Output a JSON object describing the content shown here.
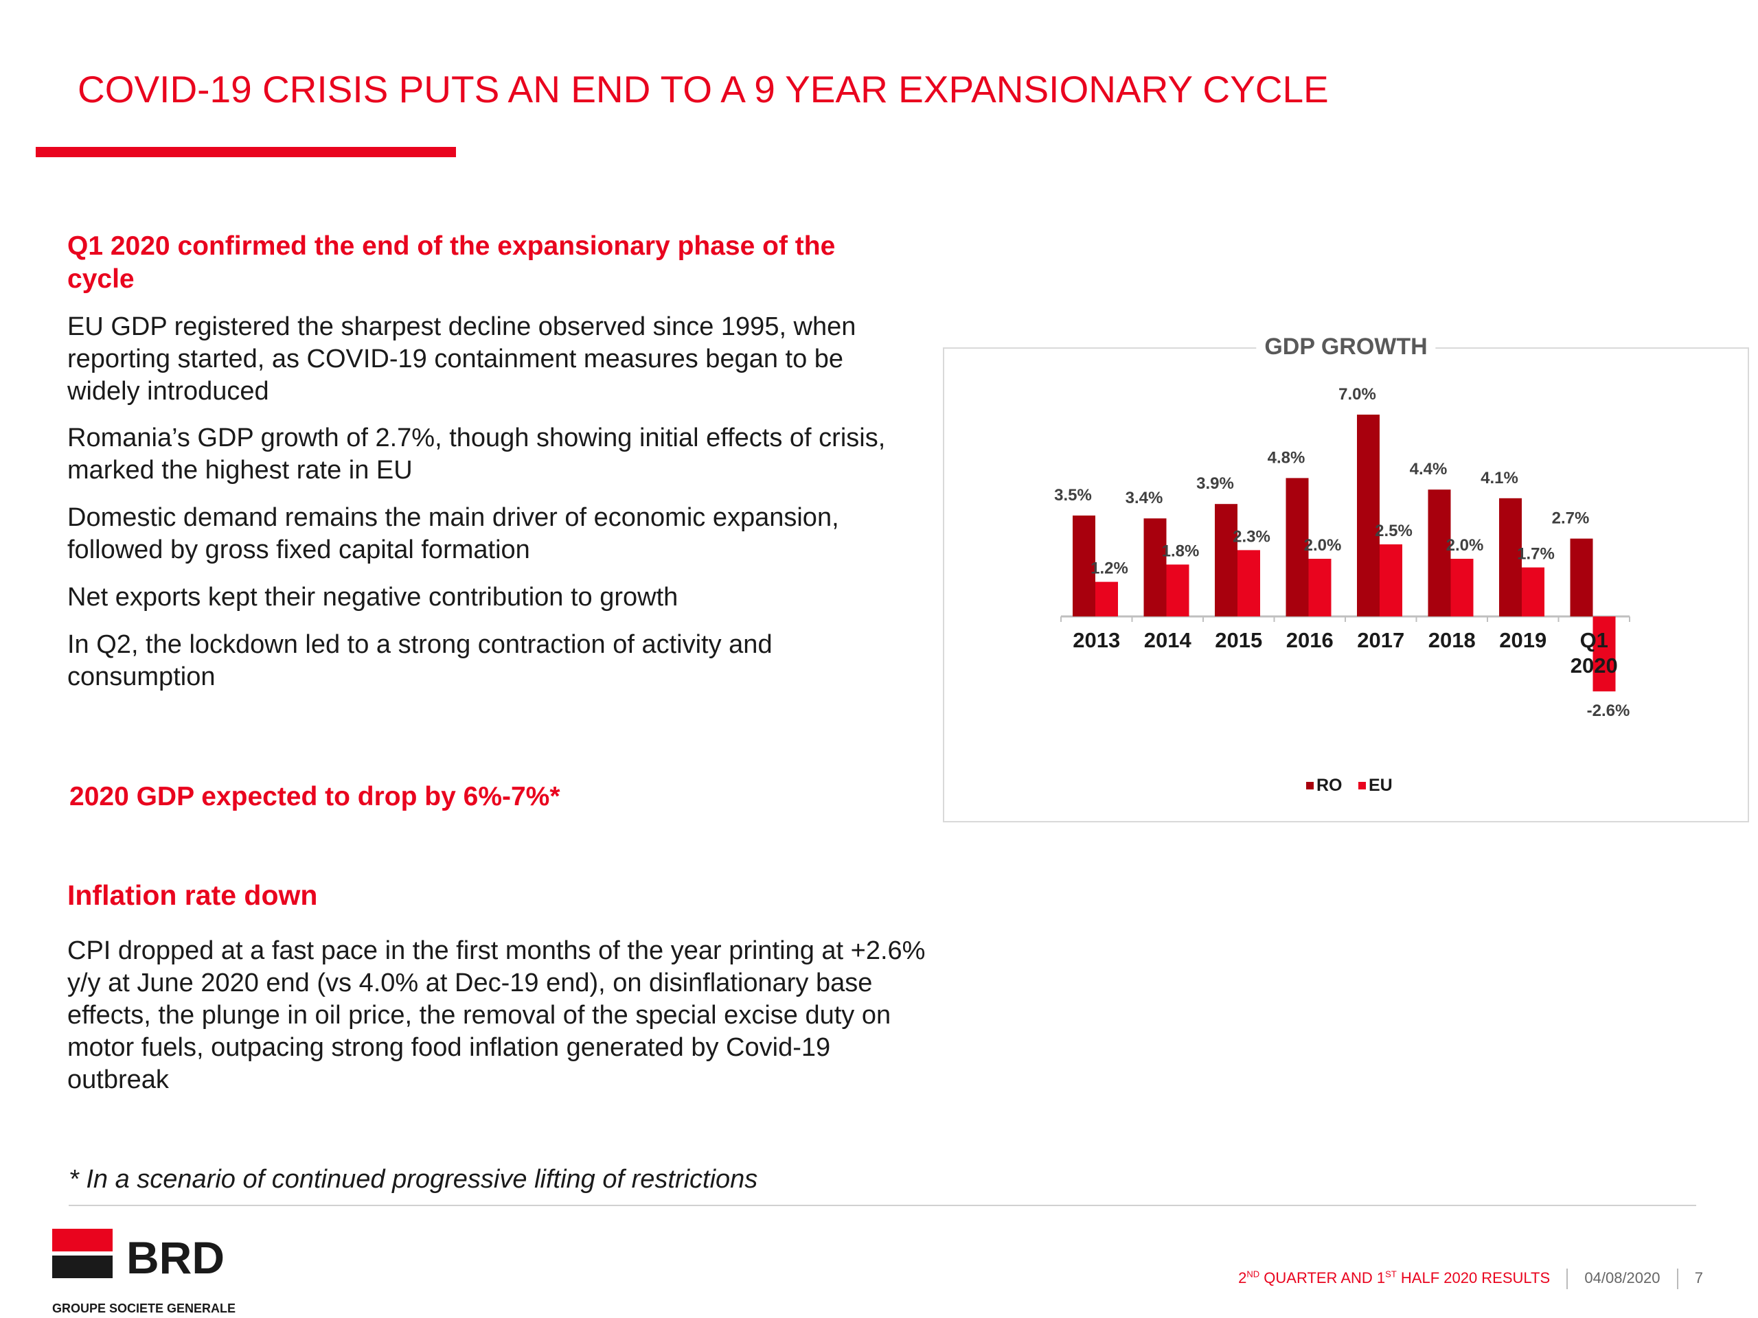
{
  "title": "COVID-19 CRISIS PUTS AN END TO A 9 YEAR EXPANSIONARY CYCLE",
  "colors": {
    "accent": "#e9041e",
    "ro": "#a8000d",
    "eu": "#e9041e"
  },
  "section1": {
    "heading": "Q1 2020 confirmed the end of the expansionary phase of the cycle",
    "bullets": [
      "EU GDP registered the sharpest decline observed since 1995, when reporting started, as COVID-19 containment measures began to be widely introduced",
      "Romania’s GDP growth of 2.7%, though showing initial effects of crisis, marked the highest rate in EU",
      "Domestic demand remains the main driver of economic expansion, followed by gross fixed capital formation",
      "Net exports kept their negative contribution to growth",
      "In Q2, the lockdown led to a strong contraction of activity and consumption"
    ]
  },
  "section2": {
    "heading": "2020 GDP expected to drop by 6%-7%*"
  },
  "section3": {
    "heading": "Inflation rate down",
    "bullets": [
      "CPI dropped at a fast pace in the first months of the year printing at +2.6% y/y at June 2020 end (vs 4.0% at Dec-19 end), on disinflationary base effects, the plunge in oil price, the removal of the special excise duty on motor fuels, outpacing strong food inflation generated by Covid-19 outbreak"
    ]
  },
  "footnote": "* In a scenario of continued progressive lifting of restrictions",
  "logo": {
    "name": "BRD",
    "subtitle": "GROUPE SOCIETE GENERALE"
  },
  "footer": {
    "report": {
      "q": "2",
      "q_sup": "ND",
      "mid": " QUARTER AND 1",
      "h_sup": "ST",
      "end": " HALF 2020 RESULTS"
    },
    "date": "04/08/2020",
    "page": "7"
  },
  "chart_data": {
    "type": "bar",
    "title": "GDP GROWTH",
    "categories": [
      [
        "2013"
      ],
      [
        "2014"
      ],
      [
        "2015"
      ],
      [
        "2016"
      ],
      [
        "2017"
      ],
      [
        "2018"
      ],
      [
        "2019"
      ],
      [
        "Q1",
        "2020"
      ]
    ],
    "series": [
      {
        "name": "RO",
        "values": [
          3.5,
          3.4,
          3.9,
          4.8,
          7.0,
          4.4,
          4.1,
          2.7
        ],
        "labels": [
          "3.5%",
          "3.4%",
          "3.9%",
          "4.8%",
          "7.0%",
          "4.4%",
          "4.1%",
          "2.7%"
        ]
      },
      {
        "name": "EU",
        "values": [
          1.2,
          1.8,
          2.3,
          2.0,
          2.5,
          2.0,
          1.7,
          -2.6
        ],
        "labels": [
          "1.2%",
          "1.8%",
          "2.3%",
          "2.0%",
          "2.5%",
          "2.0%",
          "1.7%",
          "-2.6%"
        ]
      }
    ],
    "ylim": [
      -2.6,
      7.0
    ],
    "grid": false,
    "legend": "bottom"
  }
}
